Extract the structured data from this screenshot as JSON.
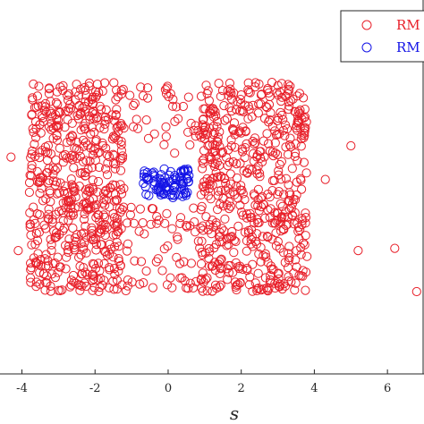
{
  "chart_data": {
    "type": "scatter",
    "xlabel": "s",
    "ylabel": "",
    "title": "",
    "xlim": [
      -4.6,
      7.0
    ],
    "ylim": [
      -2.5,
      2.5
    ],
    "xticks": [
      -4,
      -2,
      0,
      2,
      4,
      6
    ],
    "xtick_labels": [
      "-4",
      "-2",
      "0",
      "2",
      "4",
      "6"
    ],
    "grid": false,
    "legend": {
      "placement": "top-right"
    },
    "series": [
      {
        "name": "RM",
        "color": "#e8202a",
        "marker": "open-circle",
        "regions": [
          {
            "x_range": [
              -3.8,
              -1.2
            ],
            "y_range": [
              -1.4,
              1.4
            ],
            "count": 560
          },
          {
            "x_range": [
              0.9,
              3.8
            ],
            "y_range": [
              -1.4,
              1.4
            ],
            "count": 560
          },
          {
            "x_range": [
              -1.3,
              1.0
            ],
            "y_range": [
              -1.4,
              -0.25
            ],
            "count": 70
          },
          {
            "x_range": [
              -1.1,
              1.0
            ],
            "y_range": [
              0.45,
              1.35
            ],
            "count": 45
          }
        ],
        "outliers": [
          [
            -4.3,
            0.4
          ],
          [
            -4.1,
            -0.85
          ],
          [
            5.0,
            0.55
          ],
          [
            5.2,
            -0.85
          ],
          [
            6.2,
            -0.82
          ],
          [
            6.8,
            -1.4
          ],
          [
            4.3,
            0.1
          ]
        ]
      },
      {
        "name": "RM",
        "color": "#1414e6",
        "marker": "open-circle",
        "regions": [
          {
            "x_range": [
              -0.7,
              0.6
            ],
            "y_range": [
              -0.15,
              0.25
            ],
            "count": 90
          }
        ],
        "outliers": []
      }
    ]
  }
}
